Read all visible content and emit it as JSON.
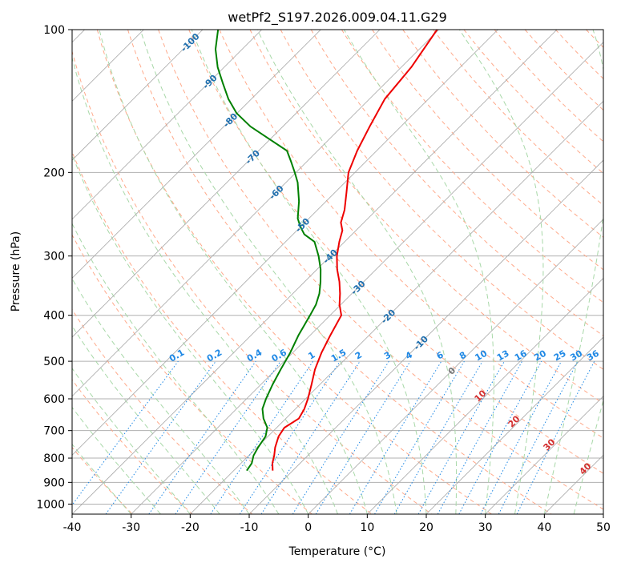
{
  "chart_data": {
    "type": "line",
    "subtype": "skew-t log-p diagram",
    "title": "wetPf2_S197.2026.009.04.11.G29",
    "xlabel": "Temperature (°C)",
    "ylabel": "Pressure (hPa)",
    "xlim": [
      -40,
      50
    ],
    "ylim": [
      1050,
      100
    ],
    "y_scale": "log",
    "x_ticks": [
      -40,
      -30,
      -20,
      -10,
      0,
      10,
      20,
      30,
      40,
      50
    ],
    "y_ticks": [
      100,
      200,
      300,
      400,
      500,
      600,
      700,
      800,
      900,
      1000
    ],
    "grid": true,
    "colors": {
      "temperature": "#ee0000",
      "dewpoint": "#008000",
      "isotherm": "#a8a8a8",
      "dry_adiabat": "#ffa98a",
      "moist_adiabat": "#a8d8a8",
      "mixing_ratio": "#1e88e5",
      "dry_adiabat_label": "#d32f2f",
      "isotherm_label": "#1f6fae",
      "zero_label": "#777777"
    },
    "series": [
      {
        "name": "Temperature",
        "unit": "°C",
        "pressure": [
          850,
          820,
          790,
          760,
          720,
          690,
          660,
          630,
          600,
          560,
          520,
          480,
          440,
          400,
          380,
          360,
          340,
          320,
          300,
          280,
          265,
          255,
          240,
          220,
          200,
          180,
          160,
          140,
          120,
          100
        ],
        "values": [
          -13.4,
          -14.7,
          -15.7,
          -16.9,
          -18.2,
          -18.7,
          -17.8,
          -18.5,
          -19.6,
          -21.4,
          -23.4,
          -25.1,
          -26.6,
          -28.1,
          -30.2,
          -32.0,
          -34.1,
          -36.6,
          -38.9,
          -40.9,
          -42.3,
          -43.9,
          -45.4,
          -48.1,
          -51.1,
          -53.3,
          -55.3,
          -57.4,
          -58.3,
          -60.3
        ]
      },
      {
        "name": "Dewpoint",
        "unit": "°C",
        "pressure": [
          850,
          820,
          790,
          760,
          720,
          690,
          660,
          630,
          600,
          560,
          520,
          480,
          440,
          400,
          380,
          360,
          340,
          320,
          300,
          280,
          270,
          260,
          250,
          230,
          210,
          200,
          190,
          180,
          170,
          160,
          150,
          140,
          130,
          120,
          110,
          100
        ],
        "values": [
          -17.8,
          -18.2,
          -19.2,
          -19.8,
          -20.4,
          -21.6,
          -23.8,
          -25.6,
          -26.7,
          -28.0,
          -29.2,
          -30.4,
          -32.0,
          -33.4,
          -34.2,
          -35.5,
          -37.3,
          -39.4,
          -42.0,
          -45.1,
          -48.1,
          -50.1,
          -51.9,
          -54.6,
          -58.0,
          -60.2,
          -62.6,
          -65.2,
          -70.2,
          -75.5,
          -80.1,
          -83.9,
          -87.4,
          -91.1,
          -94.5,
          -97.4
        ]
      }
    ],
    "isotherm_labels": [
      "-100",
      "-90",
      "-80",
      "-70",
      "-60",
      "-50",
      "-40",
      "-30",
      "-20",
      "-10",
      "0"
    ],
    "dry_adiabat_labels": [
      "10",
      "20",
      "30",
      "40"
    ],
    "mixing_ratio_labels": [
      "0.1",
      "0.2",
      "0.4",
      "0.6",
      "1",
      "1.5",
      "2",
      "3",
      "4",
      "6",
      "8",
      "10",
      "13",
      "16",
      "20",
      "25",
      "30",
      "36"
    ]
  }
}
